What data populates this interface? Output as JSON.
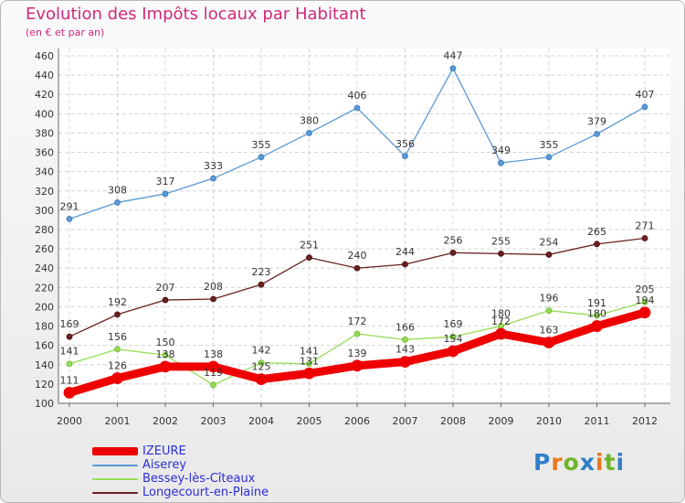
{
  "title": "Evolution des Impôts locaux par Habitant",
  "subtitle": "(en € et par an)",
  "brand": {
    "letters": [
      "P",
      "r",
      "o",
      "x",
      "i",
      "t",
      "i"
    ],
    "colors": [
      "#2f7fc8",
      "#e8781e",
      "#6fb52a",
      "#2f7fc8",
      "#e8781e",
      "#6fb52a",
      "#2f7fc8"
    ]
  },
  "chart_data": {
    "type": "line",
    "x": [
      "2000",
      "2001",
      "2002",
      "2003",
      "2004",
      "2005",
      "2006",
      "2007",
      "2008",
      "2009",
      "2010",
      "2011",
      "2012"
    ],
    "ylim": [
      100,
      460
    ],
    "yticks": [
      100,
      120,
      140,
      160,
      180,
      200,
      220,
      240,
      260,
      280,
      300,
      320,
      340,
      360,
      380,
      400,
      420,
      440,
      460
    ],
    "grid": true,
    "legend": "bottom-left",
    "series": [
      {
        "name": "IZEURE",
        "color": "#ee0000",
        "values": [
          111,
          126,
          138,
          138,
          125,
          131,
          139,
          143,
          154,
          172,
          163,
          180,
          194
        ]
      },
      {
        "name": "Aiserey",
        "color": "#5b9ad5",
        "values": [
          291,
          308,
          317,
          333,
          355,
          380,
          406,
          356,
          447,
          349,
          355,
          379,
          407
        ]
      },
      {
        "name": "Bessey-lès-Cîteaux",
        "color": "#95dd55",
        "values": [
          141,
          156,
          150,
          119,
          142,
          141,
          172,
          166,
          169,
          180,
          196,
          191,
          205
        ]
      },
      {
        "name": "Longecourt-en-Plaine",
        "color": "#6b2020",
        "values": [
          169,
          192,
          207,
          208,
          223,
          251,
          240,
          244,
          256,
          255,
          254,
          265,
          271
        ]
      }
    ],
    "data_labels": [
      {
        "series": 0,
        "labels": [
          "111",
          "126",
          "138",
          "138",
          "125",
          "131",
          "139",
          "143",
          "154",
          "172",
          "163",
          "180",
          "194"
        ]
      },
      {
        "series": 1,
        "labels": [
          "291",
          "308",
          "317",
          "333",
          "355",
          "380",
          "406",
          "356",
          "447",
          "349",
          "355",
          "379",
          "407"
        ]
      },
      {
        "series": 2,
        "labels": [
          "141",
          "156",
          "150",
          "119",
          "142",
          "141",
          "172",
          "166",
          "169",
          "180",
          "196",
          "191",
          "205"
        ]
      },
      {
        "series": 3,
        "labels": [
          "169",
          "192",
          "207",
          "208",
          "223",
          "251",
          "240",
          "244",
          "256",
          "255",
          "254",
          "265",
          "271"
        ]
      }
    ]
  }
}
